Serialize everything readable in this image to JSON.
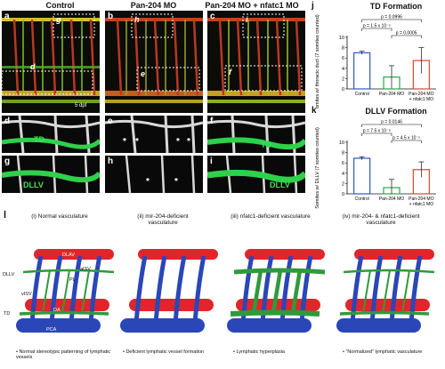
{
  "top": {
    "columns": [
      "Control",
      "Pan-204 MO",
      "Pan-204 MO + nfatc1 MO"
    ],
    "panel_letters": [
      "a",
      "b",
      "c",
      "d",
      "e",
      "f",
      "g",
      "h",
      "i",
      "j",
      "k",
      "l"
    ],
    "inset_letters_top": [
      "g",
      "h",
      "i"
    ],
    "inset_letters_mid": [
      "d",
      "e",
      "f"
    ],
    "age": "5 dpf",
    "td_label": "TD",
    "dllv_label": "DLLV",
    "asterisk": "*"
  },
  "chart_data": [
    {
      "type": "bar",
      "title": "TD Formation",
      "ylabel": "Somites w/ thoracic duct (7 somites counted)",
      "categories": [
        "Control",
        "Pan-204 MO",
        "Pan-204 MO + nfatc1 MO"
      ],
      "values": [
        7.0,
        2.3,
        5.5
      ],
      "errors": [
        0.3,
        2.2,
        2.5
      ],
      "ylim": [
        0,
        10
      ],
      "yticks": [
        0,
        2,
        4,
        6,
        8,
        10
      ],
      "colors": [
        "#2f55c8",
        "#2ca84a",
        "#d14b2e"
      ],
      "pvalues": [
        {
          "text": "p = 0.0996",
          "from": 0,
          "to": 2
        },
        {
          "text": "p = 1.5 x 10⁻⁵",
          "from": 0,
          "to": 1
        },
        {
          "text": "p = 0.0005",
          "from": 1,
          "to": 2
        }
      ]
    },
    {
      "type": "bar",
      "title": "DLLV Formation",
      "ylabel": "Somites w/ DLLV (7 somites counted)",
      "categories": [
        "Control",
        "Pan-204 MO",
        "Pan-204 MO + nfatc1 MO"
      ],
      "values": [
        6.9,
        1.2,
        4.7
      ],
      "errors": [
        0.3,
        1.6,
        1.5
      ],
      "ylim": [
        0,
        10
      ],
      "yticks": [
        0,
        2,
        4,
        6,
        8,
        10
      ],
      "colors": [
        "#2f55c8",
        "#2ca84a",
        "#d14b2e"
      ],
      "pvalues": [
        {
          "text": "p = 0.0146",
          "from": 0,
          "to": 2
        },
        {
          "text": "p = 7.5 x 10⁻⁸",
          "from": 0,
          "to": 1
        },
        {
          "text": "p = 4.5 x 10⁻⁵",
          "from": 1,
          "to": 2
        }
      ]
    }
  ],
  "bottom": {
    "panel_letter": "l",
    "titles": [
      "(i)  Normal vasculature",
      "(ii)  mir-204-deficient vasculature",
      "(iii)  nfatc1-deficient vasculature",
      "(iv)  mir-204- & nfatc1-deficient vasculature"
    ],
    "labels": {
      "dlav": "DLAV",
      "dllv": "DLLV",
      "aisv": "aISV",
      "visv": "vISV",
      "pl": "PL",
      "da": "DA",
      "td": "TD",
      "pca": "PCA"
    },
    "bullets": [
      "• Normal stereotypic patterning of lymphatic vessels",
      "• Deficient lymphatic vessel formation",
      "• Lymphatic hyperplasia",
      "• “Normalized” lymphatic vasculature"
    ],
    "colors": {
      "artery": "#e0262b",
      "vein": "#2a47b8",
      "lymph": "#2f9a3c"
    }
  }
}
